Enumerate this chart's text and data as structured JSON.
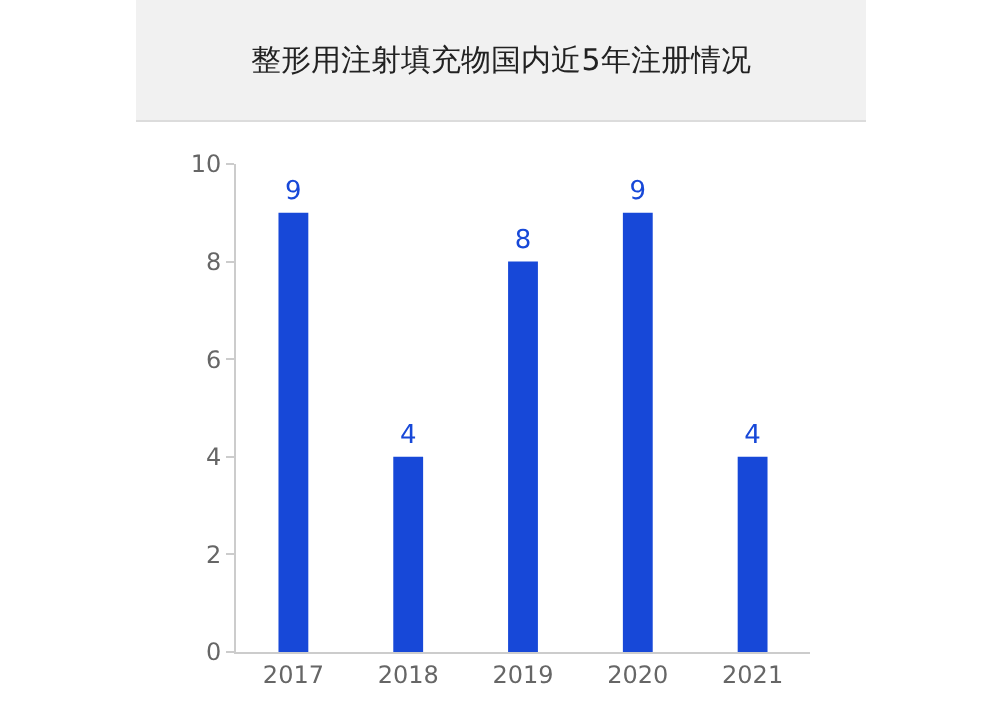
{
  "chart_data": {
    "type": "bar",
    "title": "整形用注射填充物国内近5年注册情况",
    "categories": [
      "2017",
      "2018",
      "2019",
      "2020",
      "2021"
    ],
    "values": [
      9,
      4,
      8,
      9,
      4
    ],
    "color": "#1748d8",
    "ylim": [
      0,
      10
    ],
    "yticks": [
      0,
      2,
      4,
      6,
      8,
      10
    ],
    "grid": false,
    "data_labels": true
  }
}
